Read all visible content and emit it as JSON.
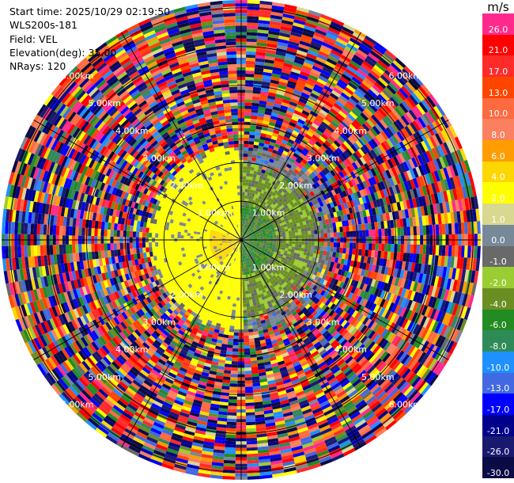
{
  "header": {
    "start_time": "Start time: 2025/10/29 02:19:50",
    "instrument": "WLS200s-181",
    "field": "Field: VEL",
    "elevation": "Elevation(deg): 35.00",
    "nrays": "NRays: 120"
  },
  "colorbar": {
    "unit": "m/s",
    "levels": [
      {
        "label": "26.0",
        "color": "#ff2a8c"
      },
      {
        "label": "21.0",
        "color": "#ff0000"
      },
      {
        "label": "17.0",
        "color": "#ff2a2a"
      },
      {
        "label": "13.0",
        "color": "#ff4500"
      },
      {
        "label": "10.0",
        "color": "#ff6a40"
      },
      {
        "label": "8.0",
        "color": "#fa8060"
      },
      {
        "label": "6.0",
        "color": "#ff9d00"
      },
      {
        "label": "4.0",
        "color": "#ffd700"
      },
      {
        "label": "2.0",
        "color": "#ffff00"
      },
      {
        "label": "1.0",
        "color": "#d8d890"
      },
      {
        "label": "0.0",
        "color": "#778899"
      },
      {
        "label": "-1.0",
        "color": "#696969"
      },
      {
        "label": "-2.0",
        "color": "#9acd32"
      },
      {
        "label": "-4.0",
        "color": "#6b8e23"
      },
      {
        "label": "-6.0",
        "color": "#228b22"
      },
      {
        "label": "-8.0",
        "color": "#2e8b57"
      },
      {
        "label": "-10.0",
        "color": "#1e90ff"
      },
      {
        "label": "-13.0",
        "color": "#4169e1"
      },
      {
        "label": "-17.0",
        "color": "#0000ff"
      },
      {
        "label": "-21.0",
        "color": "#00008b"
      },
      {
        "label": "-26.0",
        "color": "#191970"
      },
      {
        "label": "-30.0",
        "color": "#0b0b45"
      }
    ]
  },
  "chart_data": {
    "type": "heatmap",
    "projection": "polar PPI",
    "field": "VEL",
    "units": "m/s",
    "elevation_deg": 35.0,
    "nrays": 120,
    "range_km_max": 6.2,
    "range_rings_km": [
      1.0,
      2.0,
      3.0,
      4.0,
      5.0,
      6.0
    ],
    "ring_labels": [
      "1.00km",
      "2.00km",
      "3.00km",
      "4.00km",
      "5.00km",
      "6.00km"
    ],
    "structure": [
      {
        "range_km": [
          0,
          1.8
        ],
        "azimuth_deg": [
          0,
          180
        ],
        "velocity_ms": [
          -8,
          -1
        ],
        "note": "mostly green / olive (toward)"
      },
      {
        "range_km": [
          0,
          2.3
        ],
        "azimuth_deg": [
          180,
          360
        ],
        "velocity_ms": [
          1,
          6
        ],
        "note": "mostly yellow (away)"
      },
      {
        "range_km": [
          2.4,
          6.2
        ],
        "azimuth_deg": [
          0,
          360
        ],
        "velocity_ms": [
          -30,
          26
        ],
        "note": "noise, all colors"
      }
    ]
  }
}
